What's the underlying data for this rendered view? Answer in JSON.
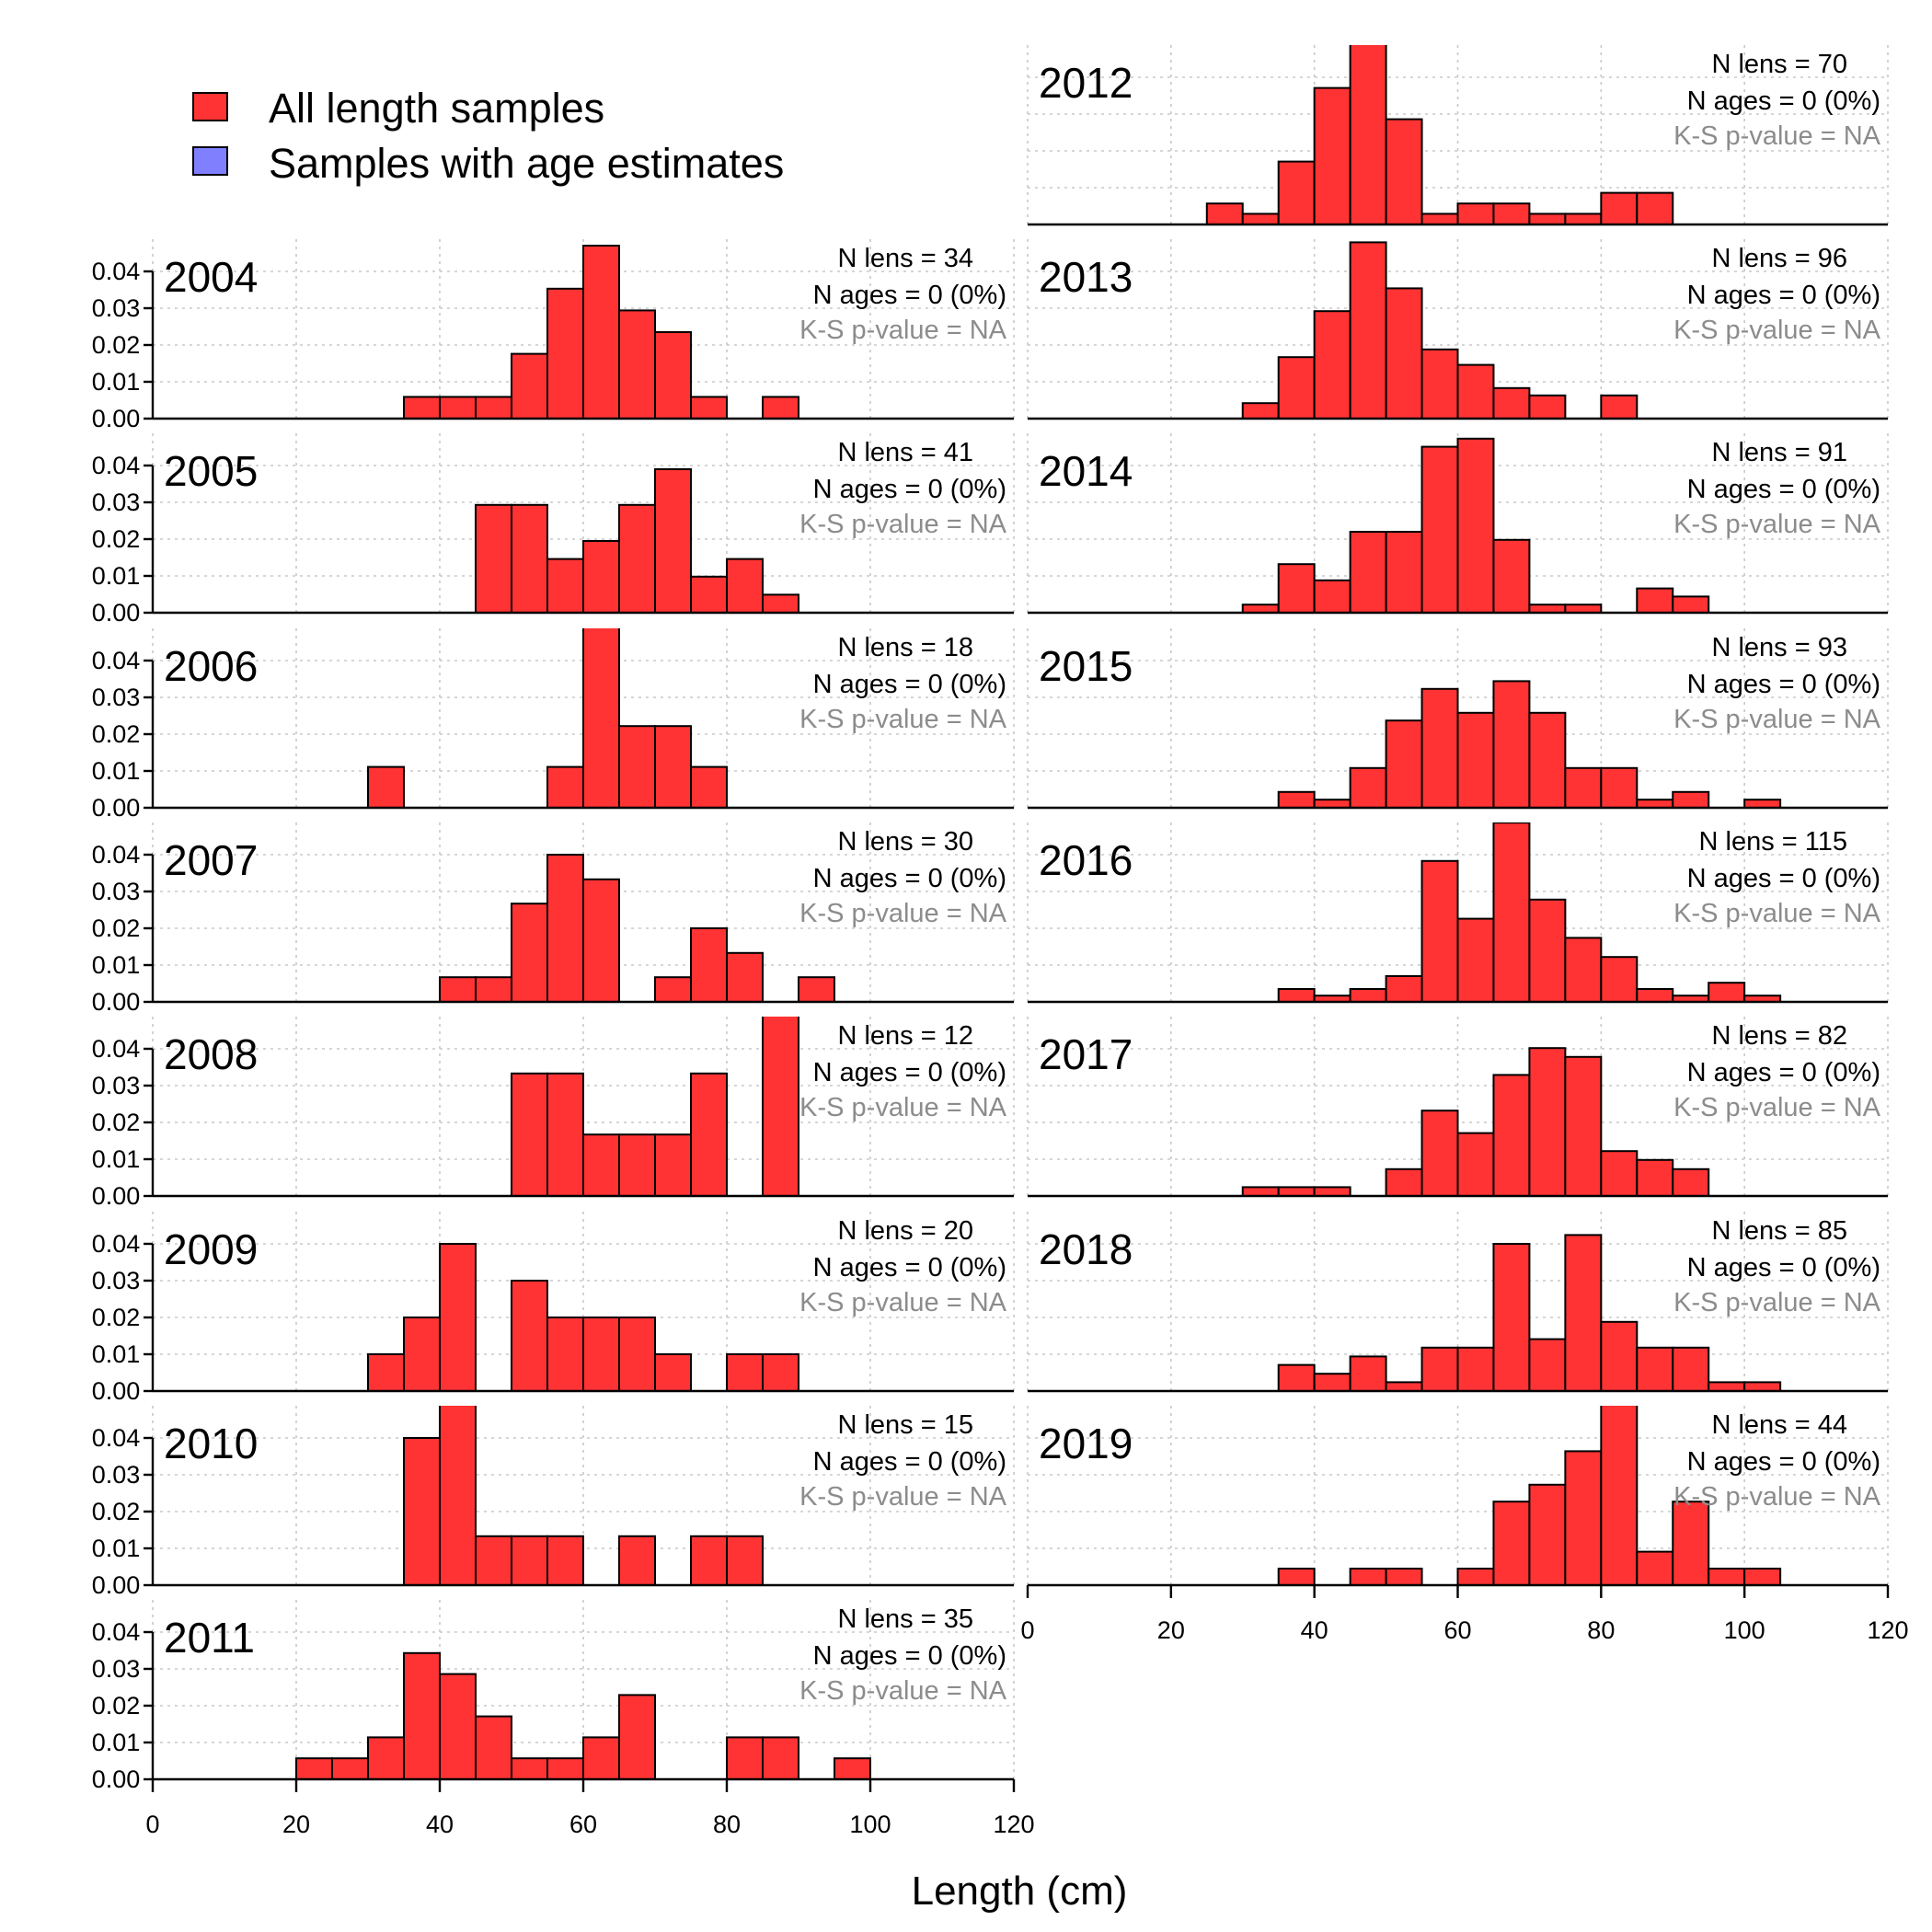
{
  "chart_data": {
    "type": "histogram-panels",
    "xlabel": "Length (cm)",
    "xlim": [
      0,
      120
    ],
    "x_ticks": [
      0,
      20,
      40,
      60,
      80,
      100,
      120
    ],
    "ylim": [
      0,
      0.045
    ],
    "y_ticks": [
      "0.00",
      "0.01",
      "0.02",
      "0.03",
      "0.04"
    ],
    "bin_width": 5,
    "grid": "on (dotted)",
    "colors": {
      "length_fill": "#ff3333",
      "age_fill": "#8080ff",
      "outline": "#000000",
      "pvalue_text": "#8c8c8c"
    },
    "legend": {
      "placement": "top-left",
      "items": [
        {
          "label": "All length samples",
          "color": "#ff3333"
        },
        {
          "label": "Samples with age estimates",
          "color": "#8080ff"
        }
      ]
    },
    "panels": [
      {
        "year": "2004",
        "n_lens": "N lens = 34",
        "n_ages": "N ages = 0 (0%)",
        "ks": "K-S p-value = NA",
        "bins": [
          [
            35,
            0.0059
          ],
          [
            40,
            0.0059
          ],
          [
            45,
            0.0059
          ],
          [
            50,
            0.0176
          ],
          [
            55,
            0.0353
          ],
          [
            60,
            0.047
          ],
          [
            65,
            0.0294
          ],
          [
            70,
            0.0235
          ],
          [
            75,
            0.0059
          ],
          [
            85,
            0.0059
          ]
        ]
      },
      {
        "year": "2005",
        "n_lens": "N lens = 41",
        "n_ages": "N ages = 0 (0%)",
        "ks": "K-S p-value = NA",
        "bins": [
          [
            45,
            0.0293
          ],
          [
            50,
            0.0293
          ],
          [
            55,
            0.0146
          ],
          [
            60,
            0.0195
          ],
          [
            65,
            0.0293
          ],
          [
            70,
            0.039
          ],
          [
            75,
            0.0098
          ],
          [
            80,
            0.0146
          ],
          [
            85,
            0.0049
          ]
        ]
      },
      {
        "year": "2006",
        "n_lens": "N lens = 18",
        "n_ages": "N ages = 0 (0%)",
        "ks": "K-S p-value = NA",
        "bins": [
          [
            30,
            0.0111
          ],
          [
            55,
            0.0111
          ],
          [
            60,
            0.0556
          ],
          [
            65,
            0.0222
          ],
          [
            70,
            0.0222
          ],
          [
            75,
            0.0111
          ]
        ]
      },
      {
        "year": "2007",
        "n_lens": "N lens = 30",
        "n_ages": "N ages = 0 (0%)",
        "ks": "K-S p-value = NA",
        "bins": [
          [
            40,
            0.0067
          ],
          [
            45,
            0.0067
          ],
          [
            50,
            0.0267
          ],
          [
            55,
            0.04
          ],
          [
            60,
            0.0333
          ],
          [
            70,
            0.0067
          ],
          [
            75,
            0.02
          ],
          [
            80,
            0.0133
          ],
          [
            90,
            0.0067
          ]
        ]
      },
      {
        "year": "2008",
        "n_lens": "N lens = 12",
        "n_ages": "N ages = 0 (0%)",
        "ks": "K-S p-value = NA",
        "bins": [
          [
            50,
            0.0333
          ],
          [
            55,
            0.0333
          ],
          [
            60,
            0.0167
          ],
          [
            65,
            0.0167
          ],
          [
            70,
            0.0167
          ],
          [
            75,
            0.0333
          ],
          [
            85,
            0.05
          ]
        ]
      },
      {
        "year": "2009",
        "n_lens": "N lens = 20",
        "n_ages": "N ages = 0 (0%)",
        "ks": "K-S p-value = NA",
        "bins": [
          [
            30,
            0.01
          ],
          [
            35,
            0.02
          ],
          [
            40,
            0.04
          ],
          [
            50,
            0.03
          ],
          [
            55,
            0.02
          ],
          [
            60,
            0.02
          ],
          [
            65,
            0.02
          ],
          [
            70,
            0.01
          ],
          [
            80,
            0.01
          ],
          [
            85,
            0.01
          ]
        ]
      },
      {
        "year": "2010",
        "n_lens": "N lens = 15",
        "n_ages": "N ages = 0 (0%)",
        "ks": "K-S p-value = NA",
        "bins": [
          [
            35,
            0.04
          ],
          [
            40,
            0.0533
          ],
          [
            45,
            0.0133
          ],
          [
            50,
            0.0133
          ],
          [
            55,
            0.0133
          ],
          [
            65,
            0.0133
          ],
          [
            75,
            0.0133
          ],
          [
            80,
            0.0133
          ]
        ]
      },
      {
        "year": "2011",
        "n_lens": "N lens = 35",
        "n_ages": "N ages = 0 (0%)",
        "ks": "K-S p-value = NA",
        "bins": [
          [
            20,
            0.0057
          ],
          [
            25,
            0.0057
          ],
          [
            30,
            0.0114
          ],
          [
            35,
            0.0343
          ],
          [
            40,
            0.0286
          ],
          [
            45,
            0.0171
          ],
          [
            50,
            0.0057
          ],
          [
            55,
            0.0057
          ],
          [
            60,
            0.0114
          ],
          [
            65,
            0.0229
          ],
          [
            80,
            0.0114
          ],
          [
            85,
            0.0114
          ],
          [
            95,
            0.0057
          ]
        ]
      },
      {
        "year": "2012",
        "n_lens": "N lens = 70",
        "n_ages": "N ages = 0 (0%)",
        "ks": "K-S p-value = NA",
        "bins": [
          [
            25,
            0.0057
          ],
          [
            30,
            0.0029
          ],
          [
            35,
            0.0171
          ],
          [
            40,
            0.0371
          ],
          [
            45,
            0.05
          ],
          [
            50,
            0.0286
          ],
          [
            55,
            0.0029
          ],
          [
            60,
            0.0057
          ],
          [
            65,
            0.0057
          ],
          [
            70,
            0.0029
          ],
          [
            75,
            0.0029
          ],
          [
            80,
            0.0086
          ],
          [
            85,
            0.0086
          ]
        ]
      },
      {
        "year": "2013",
        "n_lens": "N lens = 96",
        "n_ages": "N ages = 0 (0%)",
        "ks": "K-S p-value = NA",
        "bins": [
          [
            30,
            0.0042
          ],
          [
            35,
            0.0167
          ],
          [
            40,
            0.0292
          ],
          [
            45,
            0.0479
          ],
          [
            50,
            0.0354
          ],
          [
            55,
            0.0188
          ],
          [
            60,
            0.0146
          ],
          [
            65,
            0.0083
          ],
          [
            70,
            0.0063
          ],
          [
            80,
            0.0063
          ]
        ]
      },
      {
        "year": "2014",
        "n_lens": "N lens = 91",
        "n_ages": "N ages = 0 (0%)",
        "ks": "K-S p-value = NA",
        "bins": [
          [
            30,
            0.0022
          ],
          [
            35,
            0.0132
          ],
          [
            40,
            0.0088
          ],
          [
            45,
            0.022
          ],
          [
            50,
            0.022
          ],
          [
            55,
            0.0451
          ],
          [
            60,
            0.0473
          ],
          [
            65,
            0.0198
          ],
          [
            70,
            0.0022
          ],
          [
            75,
            0.0022
          ],
          [
            85,
            0.0066
          ],
          [
            90,
            0.0044
          ]
        ]
      },
      {
        "year": "2015",
        "n_lens": "N lens = 93",
        "n_ages": "N ages = 0 (0%)",
        "ks": "K-S p-value = NA",
        "bins": [
          [
            35,
            0.0043
          ],
          [
            40,
            0.0022
          ],
          [
            45,
            0.0108
          ],
          [
            50,
            0.0237
          ],
          [
            55,
            0.0323
          ],
          [
            60,
            0.0258
          ],
          [
            65,
            0.0344
          ],
          [
            70,
            0.0258
          ],
          [
            75,
            0.0108
          ],
          [
            80,
            0.0108
          ],
          [
            85,
            0.0022
          ],
          [
            90,
            0.0043
          ],
          [
            100,
            0.0022
          ]
        ]
      },
      {
        "year": "2016",
        "n_lens": "N lens = 115",
        "n_ages": "N ages = 0 (0%)",
        "ks": "K-S p-value = NA",
        "bins": [
          [
            35,
            0.0035
          ],
          [
            40,
            0.0017
          ],
          [
            45,
            0.0035
          ],
          [
            50,
            0.007
          ],
          [
            55,
            0.0383
          ],
          [
            60,
            0.0226
          ],
          [
            65,
            0.0487
          ],
          [
            70,
            0.0278
          ],
          [
            75,
            0.0174
          ],
          [
            80,
            0.0122
          ],
          [
            85,
            0.0035
          ],
          [
            90,
            0.0017
          ],
          [
            95,
            0.0052
          ],
          [
            100,
            0.0017
          ]
        ]
      },
      {
        "year": "2017",
        "n_lens": "N lens = 82",
        "n_ages": "N ages = 0 (0%)",
        "ks": "K-S p-value = NA",
        "bins": [
          [
            30,
            0.0024
          ],
          [
            35,
            0.0024
          ],
          [
            40,
            0.0024
          ],
          [
            50,
            0.0073
          ],
          [
            55,
            0.0232
          ],
          [
            60,
            0.0171
          ],
          [
            65,
            0.0329
          ],
          [
            70,
            0.0402
          ],
          [
            75,
            0.0378
          ],
          [
            80,
            0.0122
          ],
          [
            85,
            0.0098
          ],
          [
            90,
            0.0073
          ]
        ]
      },
      {
        "year": "2018",
        "n_lens": "N lens = 85",
        "n_ages": "N ages = 0 (0%)",
        "ks": "K-S p-value = NA",
        "bins": [
          [
            35,
            0.0071
          ],
          [
            40,
            0.0047
          ],
          [
            45,
            0.0094
          ],
          [
            50,
            0.0024
          ],
          [
            55,
            0.0118
          ],
          [
            60,
            0.0118
          ],
          [
            65,
            0.04
          ],
          [
            70,
            0.0141
          ],
          [
            75,
            0.0424
          ],
          [
            80,
            0.0188
          ],
          [
            85,
            0.0118
          ],
          [
            90,
            0.0118
          ],
          [
            95,
            0.0024
          ],
          [
            100,
            0.0024
          ]
        ]
      },
      {
        "year": "2019",
        "n_lens": "N lens = 44",
        "n_ages": "N ages = 0 (0%)",
        "ks": "K-S p-value = NA",
        "bins": [
          [
            35,
            0.0045
          ],
          [
            45,
            0.0045
          ],
          [
            50,
            0.0045
          ],
          [
            60,
            0.0045
          ],
          [
            65,
            0.0227
          ],
          [
            70,
            0.0273
          ],
          [
            75,
            0.0364
          ],
          [
            80,
            0.0545
          ],
          [
            85,
            0.0091
          ],
          [
            90,
            0.0227
          ],
          [
            95,
            0.0045
          ],
          [
            100,
            0.0045
          ]
        ]
      }
    ]
  }
}
